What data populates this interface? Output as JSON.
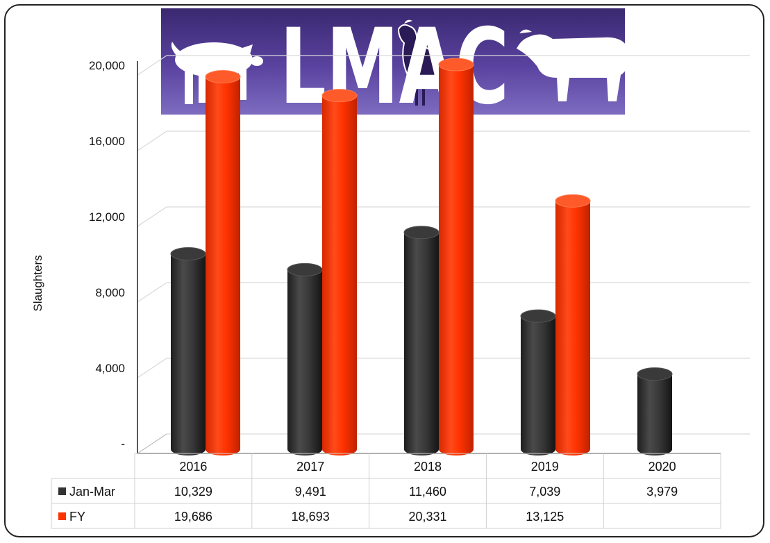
{
  "chart_data": {
    "type": "bar",
    "style": "3d-cylinder",
    "categories": [
      "2016",
      "2017",
      "2018",
      "2019",
      "2020"
    ],
    "series": [
      {
        "name": "Jan-Mar",
        "color": "#333333",
        "values": [
          10329,
          9491,
          11460,
          7039,
          3979
        ],
        "labels": [
          "10,329",
          "9,491",
          "11,460",
          "7,039",
          "3,979"
        ]
      },
      {
        "name": "FY",
        "color": "#ff3300",
        "values": [
          19686,
          18693,
          20331,
          13125,
          null
        ],
        "labels": [
          "19,686",
          "18,693",
          "20,331",
          "13,125",
          ""
        ]
      }
    ],
    "ylabel": "Slaughters",
    "ylim": [
      0,
      20000
    ],
    "yticks": [
      0,
      4000,
      8000,
      12000,
      16000,
      20000
    ],
    "ytick_labels": [
      "-",
      "4,000",
      "8,000",
      "12,000",
      "16,000",
      "20,000"
    ],
    "grid": true,
    "data_table": true
  },
  "logo": {
    "text": "LMAC",
    "background": "#4a3585",
    "icons": [
      "pig-icon",
      "chicken-icon",
      "bull-icon"
    ]
  }
}
